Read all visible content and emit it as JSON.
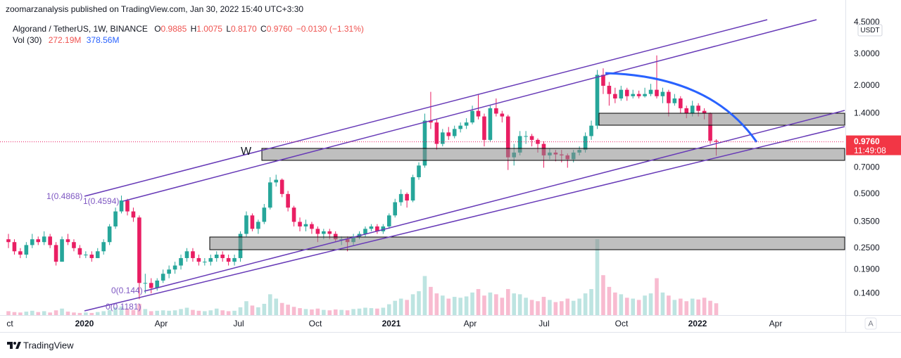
{
  "published": "zoomarzanalysis published on TradingView.com, Jan 30, 2022 15:40 UTC+3:30",
  "chart_data": {
    "type": "candlestick",
    "legend": {
      "symbol": "Algorand / TetherUS, 1W, BINANCE",
      "keys": [
        "O",
        "H",
        "L",
        "C"
      ],
      "open": 0.9885,
      "high": 1.0075,
      "low": {
        "value": 0.817,
        "label": "0.8170"
      },
      "close": {
        "value": 0.976,
        "label": "0.9760"
      },
      "change": {
        "value": -0.013,
        "label": "−0.0130"
      },
      "change_pct": {
        "value": -1.31,
        "label": "(−1.31%)"
      },
      "volume_title": "Vol (30)",
      "volume": {
        "value": 272.19,
        "label": "272.19M"
      },
      "volume_ma": {
        "value": 378.56,
        "label": "378.56M"
      }
    },
    "candles": {
      "open": [
        0.28,
        0.27,
        0.24,
        0.23,
        0.26,
        0.28,
        0.27,
        0.29,
        0.26,
        0.21,
        0.28,
        0.27,
        0.25,
        0.23,
        0.23,
        0.22,
        0.24,
        0.27,
        0.33,
        0.4,
        0.46,
        0.4,
        0.37,
        0.16,
        0.16,
        0.15,
        0.165,
        0.18,
        0.19,
        0.2,
        0.22,
        0.24,
        0.22,
        0.21,
        0.21,
        0.22,
        0.23,
        0.22,
        0.21,
        0.22,
        0.3,
        0.38,
        0.32,
        0.35,
        0.42,
        0.58,
        0.6,
        0.5,
        0.42,
        0.35,
        0.33,
        0.34,
        0.32,
        0.3,
        0.31,
        0.3,
        0.28,
        0.28,
        0.27,
        0.29,
        0.3,
        0.32,
        0.33,
        0.31,
        0.33,
        0.38,
        0.45,
        0.5,
        0.46,
        0.62,
        0.72,
        1.28,
        1.25,
        0.95,
        1.1,
        1.05,
        1.15,
        1.2,
        1.25,
        1.45,
        1.35,
        1.0,
        1.5,
        1.4,
        1.35,
        0.8,
        0.85,
        1.05,
        1.05,
        1.0,
        0.95,
        0.82,
        0.85,
        0.83,
        0.82,
        0.78,
        0.85,
        0.88,
        1.05,
        1.2,
        2.3,
        2.0,
        1.8,
        1.7,
        1.9,
        1.75,
        1.8,
        1.75,
        1.8,
        1.9,
        1.75,
        1.85,
        1.6,
        1.7,
        1.5,
        1.4,
        1.55,
        1.45,
        1.4,
        0.9885
      ],
      "high": [
        0.3,
        0.28,
        0.25,
        0.27,
        0.3,
        0.29,
        0.31,
        0.3,
        0.27,
        0.29,
        0.3,
        0.28,
        0.26,
        0.24,
        0.24,
        0.25,
        0.28,
        0.34,
        0.42,
        0.49,
        0.47,
        0.42,
        0.38,
        0.18,
        0.17,
        0.17,
        0.19,
        0.2,
        0.21,
        0.23,
        0.25,
        0.25,
        0.23,
        0.22,
        0.23,
        0.24,
        0.24,
        0.23,
        0.23,
        0.31,
        0.4,
        0.39,
        0.36,
        0.44,
        0.62,
        0.64,
        0.61,
        0.52,
        0.43,
        0.37,
        0.36,
        0.35,
        0.33,
        0.32,
        0.32,
        0.31,
        0.29,
        0.29,
        0.3,
        0.31,
        0.33,
        0.34,
        0.34,
        0.34,
        0.39,
        0.47,
        0.53,
        0.51,
        0.64,
        0.75,
        1.4,
        1.85,
        1.3,
        1.15,
        1.18,
        1.2,
        1.25,
        1.32,
        1.55,
        1.8,
        1.4,
        1.55,
        1.7,
        1.45,
        1.38,
        0.95,
        1.12,
        1.12,
        1.08,
        1.02,
        0.98,
        0.9,
        0.88,
        0.88,
        0.84,
        0.88,
        0.92,
        1.1,
        1.28,
        2.45,
        2.5,
        2.1,
        1.95,
        2.0,
        1.95,
        1.9,
        1.88,
        1.95,
        2.05,
        2.95,
        1.95,
        1.9,
        1.8,
        1.75,
        1.55,
        1.65,
        1.6,
        1.5,
        1.42,
        1.0075
      ],
      "low": [
        0.25,
        0.23,
        0.22,
        0.22,
        0.25,
        0.26,
        0.26,
        0.25,
        0.2,
        0.21,
        0.26,
        0.24,
        0.22,
        0.22,
        0.21,
        0.22,
        0.23,
        0.26,
        0.32,
        0.39,
        0.38,
        0.35,
        0.13,
        0.14,
        0.14,
        0.145,
        0.16,
        0.17,
        0.18,
        0.19,
        0.21,
        0.21,
        0.2,
        0.2,
        0.2,
        0.21,
        0.21,
        0.2,
        0.2,
        0.21,
        0.29,
        0.31,
        0.3,
        0.34,
        0.41,
        0.55,
        0.48,
        0.4,
        0.33,
        0.31,
        0.31,
        0.3,
        0.27,
        0.28,
        0.28,
        0.27,
        0.26,
        0.24,
        0.26,
        0.28,
        0.29,
        0.31,
        0.3,
        0.3,
        0.32,
        0.37,
        0.43,
        0.42,
        0.45,
        0.6,
        0.7,
        1.15,
        0.88,
        0.92,
        1.0,
        1.02,
        1.1,
        1.15,
        1.22,
        1.3,
        0.92,
        0.98,
        1.35,
        1.25,
        0.68,
        0.72,
        0.82,
        0.95,
        0.92,
        0.85,
        0.7,
        0.78,
        0.76,
        0.75,
        0.7,
        0.75,
        0.82,
        0.85,
        1.0,
        1.15,
        1.8,
        1.55,
        1.6,
        1.65,
        1.65,
        1.7,
        1.7,
        1.72,
        1.75,
        1.7,
        1.6,
        1.35,
        1.55,
        1.4,
        1.32,
        1.35,
        1.35,
        1.3,
        0.95,
        0.817
      ],
      "close": [
        0.27,
        0.24,
        0.23,
        0.26,
        0.28,
        0.27,
        0.29,
        0.26,
        0.21,
        0.28,
        0.27,
        0.25,
        0.23,
        0.23,
        0.22,
        0.24,
        0.27,
        0.33,
        0.4,
        0.46,
        0.4,
        0.37,
        0.16,
        0.16,
        0.15,
        0.165,
        0.18,
        0.19,
        0.2,
        0.22,
        0.24,
        0.22,
        0.21,
        0.21,
        0.22,
        0.23,
        0.22,
        0.21,
        0.22,
        0.3,
        0.38,
        0.32,
        0.35,
        0.42,
        0.58,
        0.6,
        0.5,
        0.42,
        0.35,
        0.33,
        0.34,
        0.32,
        0.3,
        0.31,
        0.3,
        0.28,
        0.28,
        0.27,
        0.29,
        0.3,
        0.32,
        0.33,
        0.31,
        0.33,
        0.38,
        0.45,
        0.5,
        0.46,
        0.62,
        0.72,
        1.28,
        1.25,
        0.95,
        1.1,
        1.05,
        1.15,
        1.2,
        1.25,
        1.45,
        1.35,
        1.0,
        1.5,
        1.4,
        1.35,
        0.8,
        0.85,
        1.05,
        1.05,
        1.0,
        0.95,
        0.82,
        0.85,
        0.83,
        0.82,
        0.78,
        0.85,
        0.88,
        1.05,
        1.2,
        2.3,
        2.0,
        1.8,
        1.7,
        1.9,
        1.75,
        1.8,
        1.75,
        1.8,
        1.9,
        1.75,
        1.85,
        1.6,
        1.7,
        1.5,
        1.4,
        1.55,
        1.45,
        1.4,
        0.9885,
        0.976
      ]
    },
    "volume": [
      90,
      70,
      60,
      80,
      100,
      70,
      90,
      60,
      110,
      150,
      80,
      60,
      50,
      60,
      50,
      70,
      90,
      120,
      180,
      200,
      150,
      120,
      260,
      140,
      90,
      100,
      110,
      100,
      110,
      140,
      170,
      120,
      100,
      90,
      110,
      150,
      110,
      90,
      100,
      180,
      320,
      220,
      180,
      260,
      480,
      380,
      280,
      240,
      190,
      160,
      140,
      130,
      150,
      120,
      110,
      130,
      120,
      110,
      140,
      150,
      170,
      160,
      150,
      170,
      250,
      330,
      380,
      350,
      480,
      550,
      900,
      650,
      500,
      450,
      380,
      420,
      400,
      430,
      520,
      600,
      450,
      520,
      480,
      400,
      600,
      500,
      480,
      400,
      350,
      320,
      420,
      350,
      300,
      320,
      380,
      330,
      380,
      500,
      600,
      1750,
      920,
      650,
      520,
      480,
      400,
      380,
      350,
      450,
      500,
      850,
      520,
      450,
      350,
      380,
      320,
      380,
      360,
      400,
      330,
      272.19
    ],
    "up_color": "#26a69a",
    "down_color": "#e91e63",
    "log_scale": true,
    "grid": false,
    "xlim": [
      -1.42,
      140.6
    ],
    "xticks": [
      {
        "value": 0.24,
        "label": "ct"
      },
      {
        "value": 12.78,
        "label": "2020"
      },
      {
        "value": 25.68,
        "label": "Apr"
      },
      {
        "value": 38.7,
        "label": "Jul"
      },
      {
        "value": 51.6,
        "label": "Oct"
      },
      {
        "value": 64.38,
        "label": "2021"
      },
      {
        "value": 77.63,
        "label": "Apr"
      },
      {
        "value": 90.06,
        "label": "Jul"
      },
      {
        "value": 103.08,
        "label": "Oct"
      },
      {
        "value": 115.86,
        "label": "2022"
      },
      {
        "value": 129.0,
        "label": "Apr"
      }
    ],
    "ylim": [
      0.106,
      6.0
    ],
    "yticks": [
      {
        "value": 4.5,
        "label": "4.5000"
      },
      {
        "value": 3,
        "label": "3.0000"
      },
      {
        "value": 2,
        "label": "2.0000"
      },
      {
        "value": 1.4,
        "label": "1.4000"
      },
      {
        "value": 0.7,
        "label": "0.7000"
      },
      {
        "value": 0.5,
        "label": "0.5000"
      },
      {
        "value": 0.35,
        "label": "0.3500"
      },
      {
        "value": 0.25,
        "label": "0.2500"
      },
      {
        "value": 0.19,
        "label": "0.1900"
      },
      {
        "value": 0.14,
        "label": "0.1400"
      }
    ],
    "price_label": {
      "value": 0.976,
      "label": "0.9760"
    },
    "countdown": "11:49:08",
    "currency": "USDT",
    "scale_mode": "A",
    "annotations": [
      "1(0.4868)",
      "1(0.4594)",
      "0(0.144)",
      "0(0.1181)",
      "W"
    ]
  },
  "footer": {
    "brand": "TradingView"
  }
}
